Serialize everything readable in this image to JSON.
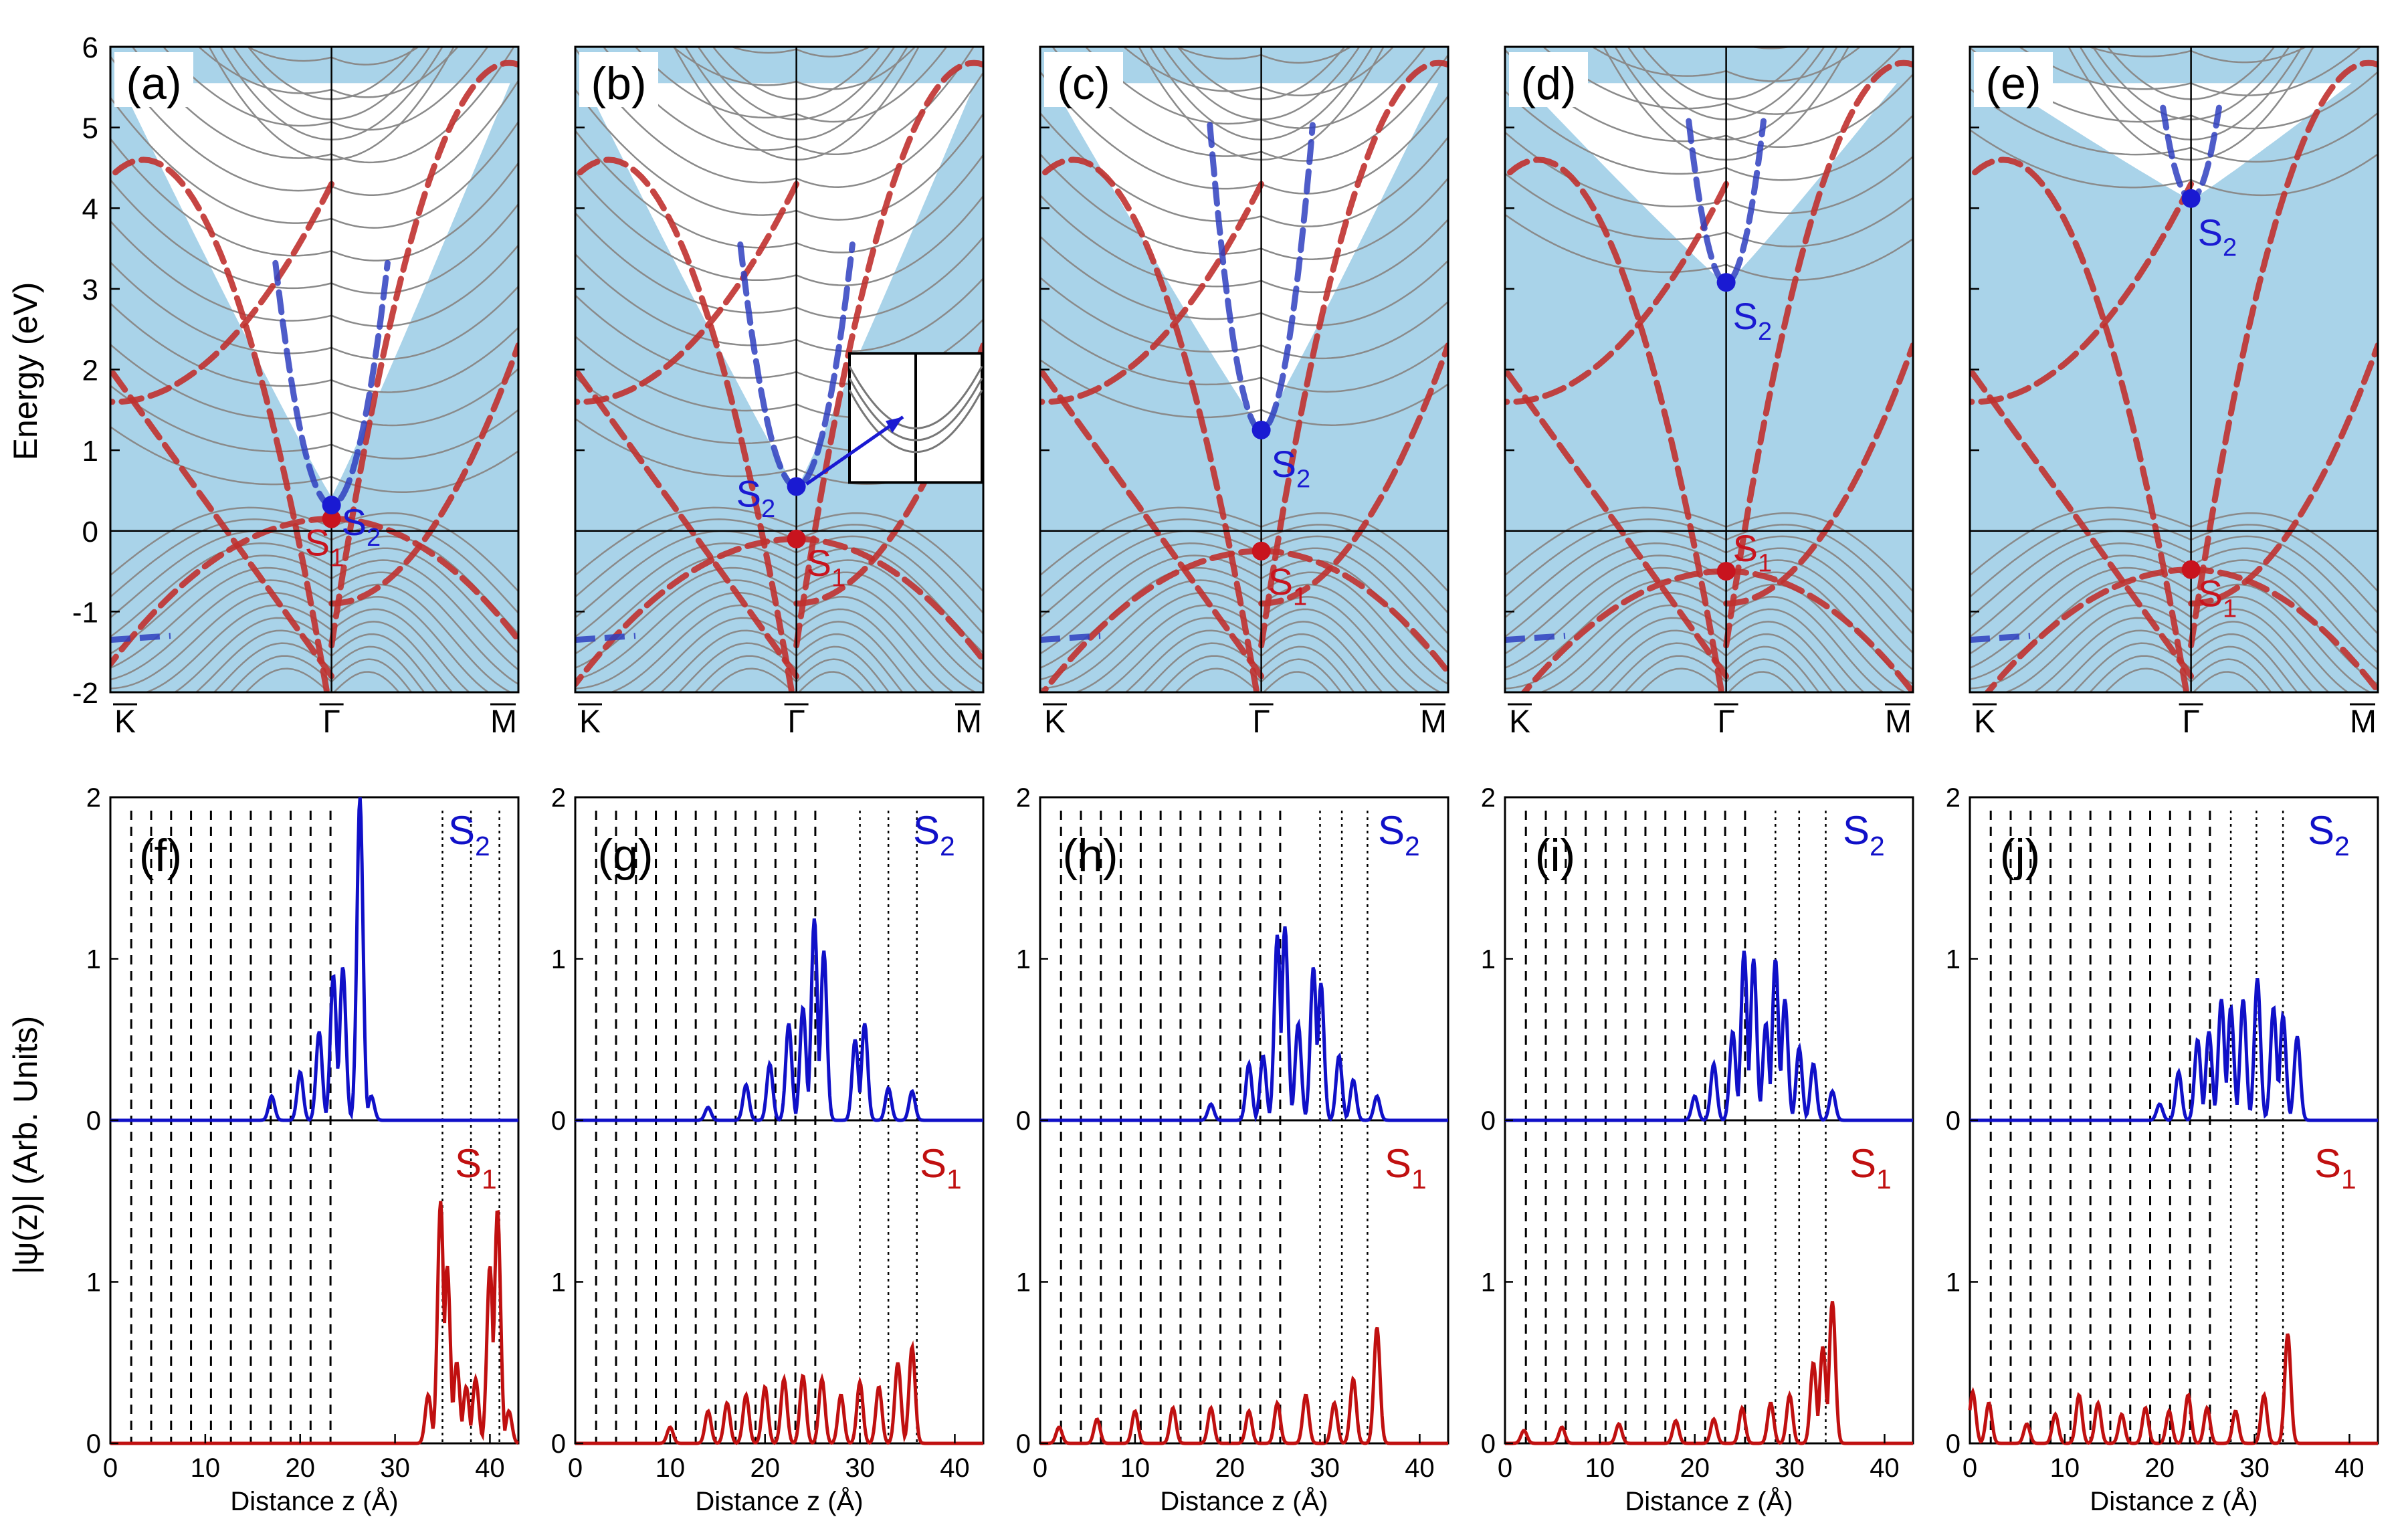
{
  "band_structure": {
    "ylabel": "Energy (eV)",
    "ylim": [
      -2,
      6
    ],
    "yticks": [
      "6",
      "5",
      "4",
      "3",
      "2",
      "1",
      "0",
      "-1",
      "-2"
    ],
    "kpoints": [
      "K",
      "Γ",
      "M"
    ],
    "colors": {
      "bulk_fill": "#a9d3e9",
      "bands": "#8a8a8a",
      "s1_dashes": "#c0312f",
      "s2_dashes": "#2f3fbf",
      "s1_marker": "#c8141e",
      "s2_marker": "#1a1ad2"
    },
    "panels": [
      {
        "label": "(a)",
        "s1_label": "S",
        "s1_sub": "1",
        "s2_label": "S",
        "s2_sub": "2",
        "s1_energy": 0.15,
        "s2_energy": 0.32,
        "inset": false
      },
      {
        "label": "(b)",
        "s1_label": "S",
        "s1_sub": "1",
        "s2_label": "S",
        "s2_sub": "2",
        "s1_energy": -0.1,
        "s2_energy": 0.55,
        "inset": true
      },
      {
        "label": "(c)",
        "s1_label": "S",
        "s1_sub": "1",
        "s2_label": "S",
        "s2_sub": "2",
        "s1_energy": -0.25,
        "s2_energy": 1.25,
        "inset": false
      },
      {
        "label": "(d)",
        "s1_label": "S",
        "s1_sub": "1",
        "s2_label": "S",
        "s2_sub": "2",
        "s1_energy": -0.5,
        "s2_energy": 3.08,
        "inset": false
      },
      {
        "label": "(e)",
        "s1_label": "S",
        "s1_sub": "1",
        "s2_label": "S",
        "s2_sub": "2",
        "s1_energy": -0.48,
        "s2_energy": 4.12,
        "inset": false
      }
    ]
  },
  "wavefunctions": {
    "ylabel": "|ψ(z)| (Arb. Units)",
    "xlabel": "Distance z (Å)",
    "xlim": [
      0,
      43
    ],
    "xticks": [
      "0",
      "10",
      "20",
      "30",
      "40"
    ],
    "s2_yticks": [
      "2",
      "1",
      "0"
    ],
    "s1_yticks": [
      "1",
      "0"
    ],
    "colors": {
      "s2": "#1010c8",
      "s1": "#c01010"
    },
    "panels": [
      {
        "label": "(f)",
        "s2_label": "S",
        "s2_sub": "2",
        "s1_label": "S",
        "s1_sub": "1"
      },
      {
        "label": "(g)",
        "s2_label": "S",
        "s2_sub": "2",
        "s1_label": "S",
        "s1_sub": "1"
      },
      {
        "label": "(h)",
        "s2_label": "S",
        "s2_sub": "2",
        "s1_label": "S",
        "s1_sub": "1"
      },
      {
        "label": "(i)",
        "s2_label": "S",
        "s2_sub": "2",
        "s1_label": "S",
        "s1_sub": "1"
      },
      {
        "label": "(j)",
        "s2_label": "S",
        "s2_sub": "2",
        "s1_label": "S",
        "s1_sub": "1"
      }
    ]
  },
  "chart_data": [
    {
      "type": "line",
      "panel": "(a)",
      "ylabel": "Energy (eV)",
      "ylim": [
        -2,
        6
      ],
      "x_ticks": [
        "K",
        "Γ",
        "M"
      ],
      "points": [
        {
          "label": "S1",
          "x": "Γ",
          "y": 0.15
        },
        {
          "label": "S2",
          "x": "Γ",
          "y": 0.32
        }
      ]
    },
    {
      "type": "line",
      "panel": "(b)",
      "ylim": [
        -2,
        6
      ],
      "x_ticks": [
        "K",
        "Γ",
        "M"
      ],
      "points": [
        {
          "label": "S1",
          "x": "Γ",
          "y": -0.1
        },
        {
          "label": "S2",
          "x": "Γ",
          "y": 0.55
        }
      ]
    },
    {
      "type": "line",
      "panel": "(c)",
      "ylim": [
        -2,
        6
      ],
      "x_ticks": [
        "K",
        "Γ",
        "M"
      ],
      "points": [
        {
          "label": "S1",
          "x": "Γ",
          "y": -0.25
        },
        {
          "label": "S2",
          "x": "Γ",
          "y": 1.25
        }
      ]
    },
    {
      "type": "line",
      "panel": "(d)",
      "ylim": [
        -2,
        6
      ],
      "x_ticks": [
        "K",
        "Γ",
        "M"
      ],
      "points": [
        {
          "label": "S1",
          "x": "Γ",
          "y": -0.5
        },
        {
          "label": "S2",
          "x": "Γ",
          "y": 3.08
        }
      ]
    },
    {
      "type": "line",
      "panel": "(e)",
      "ylim": [
        -2,
        6
      ],
      "x_ticks": [
        "K",
        "Γ",
        "M"
      ],
      "points": [
        {
          "label": "S1",
          "x": "Γ",
          "y": -0.48
        },
        {
          "label": "S2",
          "x": "Γ",
          "y": 4.12
        }
      ]
    },
    {
      "type": "line",
      "panel": "(f)",
      "xlabel": "Distance z (Å)",
      "ylabel": "|ψ(z)| (Arb. Units)",
      "xlim": [
        0,
        43
      ],
      "s2_ylim": [
        0,
        2
      ],
      "s1_ylim": [
        0,
        2
      ],
      "series": [
        {
          "name": "S2",
          "peaks": [
            [
              17,
              0.15
            ],
            [
              20,
              0.3
            ],
            [
              22,
              0.55
            ],
            [
              23.5,
              0.9
            ],
            [
              24.5,
              0.95
            ],
            [
              26.3,
              2.0
            ],
            [
              27.5,
              0.15
            ]
          ]
        },
        {
          "name": "S1",
          "peaks": [
            [
              33.5,
              0.3
            ],
            [
              34.8,
              1.5
            ],
            [
              35.5,
              1.1
            ],
            [
              36.5,
              0.5
            ],
            [
              37.5,
              0.35
            ],
            [
              38.5,
              0.4
            ],
            [
              40,
              1.1
            ],
            [
              40.8,
              1.45
            ],
            [
              42,
              0.2
            ]
          ]
        }
      ]
    },
    {
      "type": "line",
      "panel": "(g)",
      "xlabel": "Distance z (Å)",
      "xlim": [
        0,
        43
      ],
      "s2_ylim": [
        0,
        2
      ],
      "s1_ylim": [
        0,
        2
      ],
      "series": [
        {
          "name": "S2",
          "peaks": [
            [
              14,
              0.08
            ],
            [
              18,
              0.22
            ],
            [
              20.5,
              0.35
            ],
            [
              22.5,
              0.6
            ],
            [
              24,
              0.7
            ],
            [
              25.2,
              1.25
            ],
            [
              26.2,
              1.05
            ],
            [
              29.5,
              0.5
            ],
            [
              30.5,
              0.6
            ],
            [
              33,
              0.2
            ],
            [
              35.5,
              0.18
            ]
          ]
        },
        {
          "name": "S1",
          "peaks": [
            [
              10,
              0.1
            ],
            [
              14,
              0.2
            ],
            [
              16,
              0.25
            ],
            [
              18,
              0.3
            ],
            [
              20,
              0.35
            ],
            [
              22,
              0.4
            ],
            [
              24,
              0.42
            ],
            [
              26,
              0.4
            ],
            [
              28,
              0.3
            ],
            [
              30,
              0.38
            ],
            [
              32,
              0.35
            ],
            [
              34,
              0.5
            ],
            [
              35.5,
              0.6
            ]
          ]
        }
      ]
    },
    {
      "type": "line",
      "panel": "(h)",
      "xlabel": "Distance z (Å)",
      "xlim": [
        0,
        43
      ],
      "s2_ylim": [
        0,
        2
      ],
      "s1_ylim": [
        0,
        2
      ],
      "series": [
        {
          "name": "S2",
          "peaks": [
            [
              18,
              0.1
            ],
            [
              22,
              0.35
            ],
            [
              23.5,
              0.4
            ],
            [
              25,
              1.15
            ],
            [
              25.8,
              1.2
            ],
            [
              27.2,
              0.6
            ],
            [
              28.8,
              0.95
            ],
            [
              29.6,
              0.85
            ],
            [
              31.5,
              0.4
            ],
            [
              33,
              0.25
            ],
            [
              35.5,
              0.15
            ]
          ]
        },
        {
          "name": "S1",
          "peaks": [
            [
              2,
              0.1
            ],
            [
              6,
              0.15
            ],
            [
              10,
              0.2
            ],
            [
              14,
              0.22
            ],
            [
              18,
              0.22
            ],
            [
              22,
              0.2
            ],
            [
              25,
              0.25
            ],
            [
              28,
              0.3
            ],
            [
              31,
              0.25
            ],
            [
              33,
              0.4
            ],
            [
              35.5,
              0.72
            ]
          ]
        }
      ]
    },
    {
      "type": "line",
      "panel": "(i)",
      "xlabel": "Distance z (Å)",
      "xlim": [
        0,
        43
      ],
      "s2_ylim": [
        0,
        2
      ],
      "s1_ylim": [
        0,
        2
      ],
      "series": [
        {
          "name": "S2",
          "peaks": [
            [
              20,
              0.15
            ],
            [
              22,
              0.35
            ],
            [
              24,
              0.55
            ],
            [
              25.2,
              1.05
            ],
            [
              26.2,
              1.0
            ],
            [
              27.5,
              0.6
            ],
            [
              28.5,
              1.0
            ],
            [
              29.5,
              0.75
            ],
            [
              31,
              0.45
            ],
            [
              32.5,
              0.35
            ],
            [
              34.5,
              0.18
            ]
          ]
        },
        {
          "name": "S1",
          "peaks": [
            [
              2,
              0.08
            ],
            [
              6,
              0.1
            ],
            [
              12,
              0.12
            ],
            [
              18,
              0.14
            ],
            [
              22,
              0.15
            ],
            [
              25,
              0.22
            ],
            [
              28,
              0.25
            ],
            [
              30,
              0.3
            ],
            [
              32.5,
              0.5
            ],
            [
              33.5,
              0.6
            ],
            [
              34.5,
              0.88
            ]
          ]
        }
      ]
    },
    {
      "type": "line",
      "panel": "(j)",
      "xlabel": "Distance z (Å)",
      "xlim": [
        0,
        43
      ],
      "s2_ylim": [
        0,
        2
      ],
      "s1_ylim": [
        0,
        2
      ],
      "series": [
        {
          "name": "S2",
          "peaks": [
            [
              20,
              0.1
            ],
            [
              22,
              0.3
            ],
            [
              24,
              0.5
            ],
            [
              25.2,
              0.55
            ],
            [
              26.5,
              0.75
            ],
            [
              27.5,
              0.7
            ],
            [
              28.8,
              0.75
            ],
            [
              30.3,
              0.88
            ],
            [
              32,
              0.7
            ],
            [
              33,
              0.65
            ],
            [
              34.5,
              0.52
            ]
          ]
        },
        {
          "name": "S1",
          "peaks": [
            [
              0.3,
              0.32
            ],
            [
              2,
              0.25
            ],
            [
              6,
              0.12
            ],
            [
              9,
              0.18
            ],
            [
              11.5,
              0.3
            ],
            [
              13.5,
              0.25
            ],
            [
              16,
              0.18
            ],
            [
              18.5,
              0.22
            ],
            [
              21,
              0.2
            ],
            [
              23,
              0.3
            ],
            [
              25,
              0.22
            ],
            [
              28,
              0.2
            ],
            [
              31,
              0.3
            ],
            [
              33.5,
              0.68
            ]
          ]
        }
      ]
    }
  ]
}
